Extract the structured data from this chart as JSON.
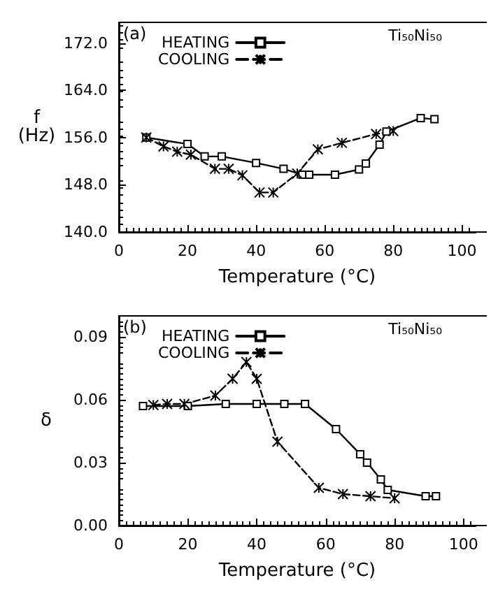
{
  "chart_data": [
    {
      "type": "line",
      "xlabel": "Temperature (°C)",
      "ylabel": "f\n(Hz)",
      "xlim": [
        0,
        104
      ],
      "ylim": [
        140,
        175.5
      ],
      "xticks": [
        0,
        20,
        40,
        60,
        80,
        100
      ],
      "yticks": [
        {
          "value": 140,
          "label": "140.0"
        },
        {
          "value": 148,
          "label": "148.0"
        },
        {
          "value": 156,
          "label": "156.0"
        },
        {
          "value": 164,
          "label": "164.0"
        },
        {
          "value": 172,
          "label": "172.0"
        }
      ],
      "legend": "top left",
      "grid": false,
      "annotations": [
        "(a)",
        "Ti₅₀Ni₅₀"
      ],
      "series": [
        {
          "name": "HEATING",
          "color": "#000000",
          "marker": "square",
          "line_style": "solid",
          "x": [
            8,
            20,
            25,
            30,
            40,
            48,
            53.5,
            55.5,
            63,
            70,
            72,
            76,
            78,
            88,
            92
          ],
          "values": [
            156,
            154.9,
            152.8,
            152.8,
            151.7,
            150.7,
            149.7,
            149.7,
            149.7,
            150.6,
            151.6,
            154.8,
            157,
            159.3,
            159.1
          ]
        },
        {
          "name": "COOLING",
          "color": "#000000",
          "marker": "cross",
          "line_style": "dashed",
          "x": [
            8,
            13,
            17,
            21,
            28,
            32,
            36,
            41,
            45,
            52,
            58,
            65,
            75,
            80
          ],
          "values": [
            156,
            154.5,
            153.6,
            153.1,
            150.7,
            150.7,
            149.6,
            146.7,
            146.7,
            149.9,
            154,
            155.1,
            156.6,
            157.1
          ]
        }
      ]
    },
    {
      "type": "line",
      "xlabel": "Temperature (°C)",
      "ylabel": "δ",
      "xlim": [
        0,
        103.5
      ],
      "ylim": [
        0,
        0.1
      ],
      "xticks": [
        0,
        20,
        40,
        60,
        80,
        100
      ],
      "yticks": [
        {
          "value": 0,
          "label": "0.00"
        },
        {
          "value": 0.03,
          "label": "0.03"
        },
        {
          "value": 0.06,
          "label": "0.06"
        },
        {
          "value": 0.09,
          "label": "0.09"
        }
      ],
      "legend": "top left",
      "grid": false,
      "annotations": [
        "(b)",
        "Ti₅₀Ni₅₀"
      ],
      "series": [
        {
          "name": "HEATING",
          "color": "#000000",
          "marker": "square",
          "line_style": "solid",
          "x": [
            7,
            20,
            31,
            40,
            48,
            54,
            63,
            70,
            72,
            76,
            78,
            89,
            92
          ],
          "values": [
            0.057,
            0.057,
            0.058,
            0.058,
            0.058,
            0.058,
            0.046,
            0.034,
            0.03,
            0.022,
            0.017,
            0.014,
            0.014
          ]
        },
        {
          "name": "COOLING",
          "color": "#000000",
          "marker": "cross",
          "line_style": "dashed",
          "x": [
            10,
            14,
            19,
            28,
            33,
            37,
            40,
            46,
            58,
            65,
            73,
            80
          ],
          "values": [
            0.0575,
            0.058,
            0.058,
            0.062,
            0.07,
            0.078,
            0.07,
            0.04,
            0.018,
            0.015,
            0.014,
            0.013
          ]
        }
      ]
    }
  ]
}
